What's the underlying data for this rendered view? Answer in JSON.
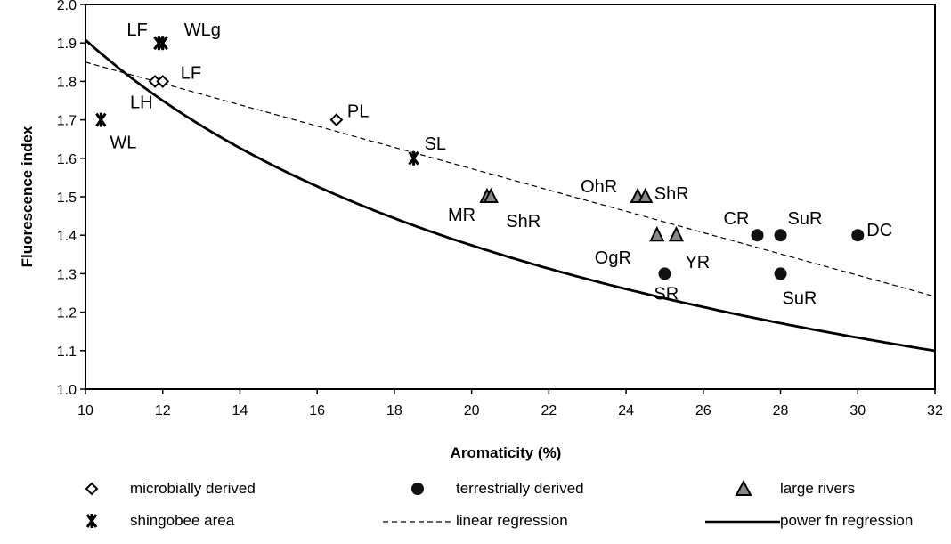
{
  "chart_data": {
    "type": "scatter",
    "xlabel": "Aromaticity (%)",
    "ylabel": "Fluorescence index",
    "xlim": [
      10,
      32
    ],
    "ylim": [
      1.0,
      2.0
    ],
    "xticks": [
      "10",
      "12",
      "14",
      "16",
      "18",
      "20",
      "22",
      "24",
      "26",
      "28",
      "30",
      "32"
    ],
    "yticks": [
      "1.0",
      "1.1",
      "1.2",
      "1.3",
      "1.4",
      "1.5",
      "1.6",
      "1.7",
      "1.8",
      "1.9",
      "2.0"
    ],
    "grid": false,
    "series": [
      {
        "name": "microbially derived",
        "marker": "diamond",
        "points": [
          {
            "x": 11.8,
            "y": 1.8,
            "label": "LH"
          },
          {
            "x": 12.0,
            "y": 1.8,
            "label": "LF"
          },
          {
            "x": 16.5,
            "y": 1.7,
            "label": "PL"
          }
        ]
      },
      {
        "name": "terrestrially derived",
        "marker": "circle",
        "points": [
          {
            "x": 25.0,
            "y": 1.3,
            "label": "SR"
          },
          {
            "x": 27.4,
            "y": 1.4,
            "label": "CR"
          },
          {
            "x": 28.0,
            "y": 1.4,
            "label": "SuR"
          },
          {
            "x": 28.0,
            "y": 1.3,
            "label": "SuR"
          },
          {
            "x": 30.0,
            "y": 1.4,
            "label": "DC"
          }
        ]
      },
      {
        "name": "large rivers",
        "marker": "triangle",
        "points": [
          {
            "x": 20.4,
            "y": 1.5,
            "label": "MR"
          },
          {
            "x": 20.5,
            "y": 1.5,
            "label": "ShR"
          },
          {
            "x": 24.3,
            "y": 1.5,
            "label": "OhR"
          },
          {
            "x": 24.5,
            "y": 1.5,
            "label": "ShR"
          },
          {
            "x": 24.8,
            "y": 1.4,
            "label": "OgR"
          },
          {
            "x": 25.3,
            "y": 1.4,
            "label": "YR"
          }
        ]
      },
      {
        "name": "shingobee area",
        "marker": "star",
        "points": [
          {
            "x": 11.9,
            "y": 1.9,
            "label": "LF"
          },
          {
            "x": 12.0,
            "y": 1.9,
            "label": "WLg"
          },
          {
            "x": 10.4,
            "y": 1.7,
            "label": "WL"
          },
          {
            "x": 18.5,
            "y": 1.6,
            "label": "SL"
          }
        ]
      }
    ],
    "regressions": [
      {
        "name": "linear regression",
        "style": "dashed",
        "kind": "linear",
        "slope": -0.0277,
        "intercept": 2.127
      },
      {
        "name": "power fn regression",
        "style": "solid",
        "kind": "power",
        "a": 5.68,
        "b": -0.4738
      }
    ]
  },
  "legend": {
    "items": [
      {
        "label": "microbially derived",
        "marker": "diamond"
      },
      {
        "label": "terrestrially derived",
        "marker": "circle"
      },
      {
        "label": "large rivers",
        "marker": "triangle"
      },
      {
        "label": "shingobee area",
        "marker": "star"
      },
      {
        "label": "linear regression",
        "marker": "dashed-line"
      },
      {
        "label": "power fn regression",
        "marker": "solid-line"
      }
    ]
  }
}
